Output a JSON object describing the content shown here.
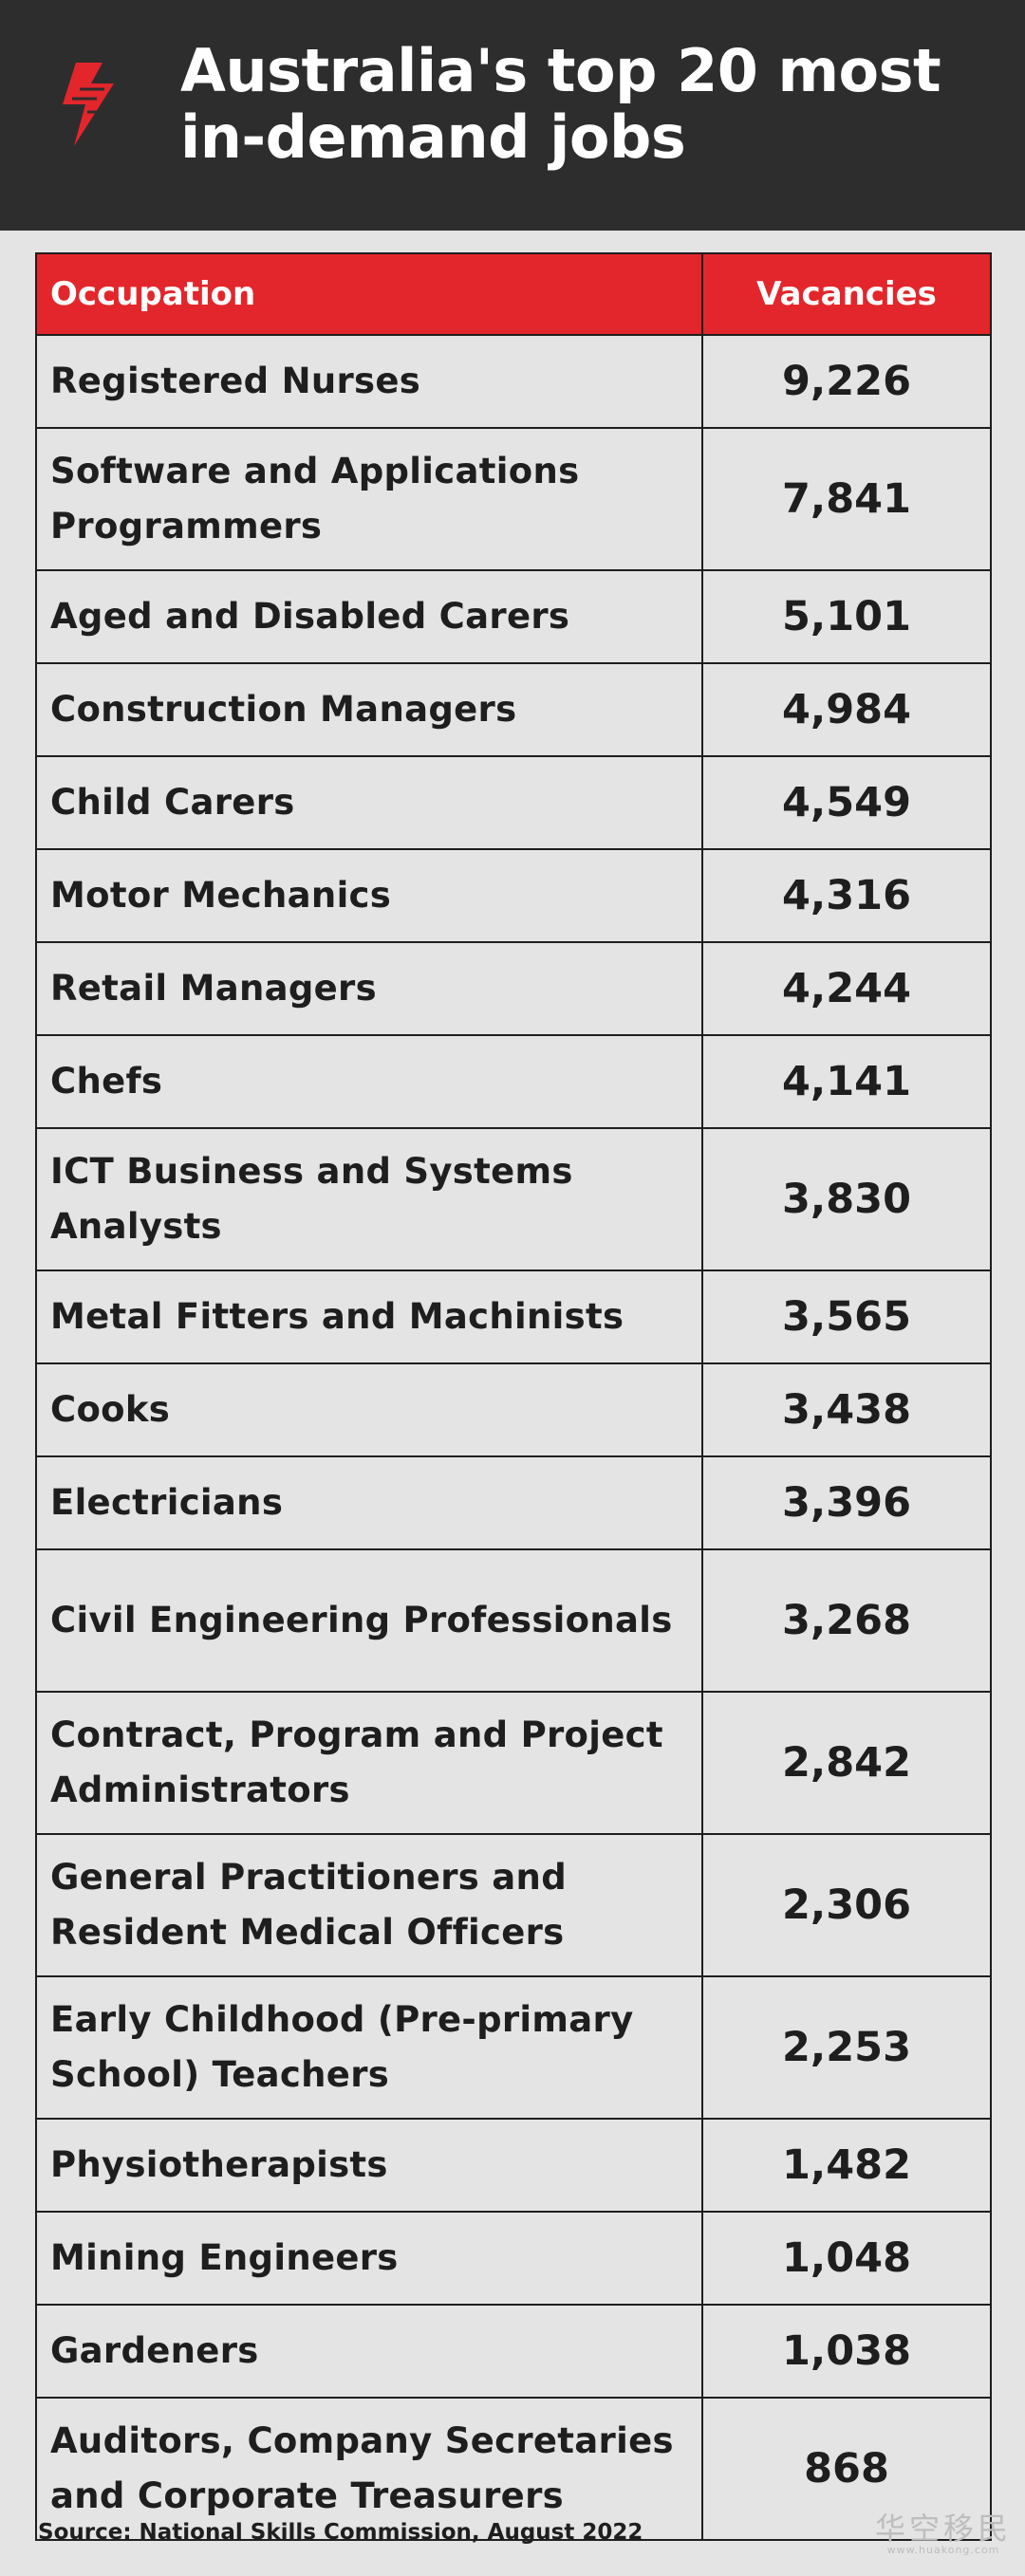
{
  "header": {
    "title": "Australia's top 20 most in-demand jobs",
    "logo_icon": "sbs-logo-icon",
    "background_color": "#2d2d2d"
  },
  "colors": {
    "accent_red": "#e2262b",
    "page_background": "#e4e4e4",
    "text": "#1e1e1e"
  },
  "chart_data": {
    "type": "table",
    "columns": [
      "Occupation",
      "Vacancies"
    ],
    "rows": [
      {
        "occupation": "Registered Nurses",
        "vacancies": "9,226"
      },
      {
        "occupation": "Software and Applications Programmers",
        "vacancies": "7,841"
      },
      {
        "occupation": "Aged and Disabled Carers",
        "vacancies": "5,101"
      },
      {
        "occupation": "Construction Managers",
        "vacancies": "4,984"
      },
      {
        "occupation": "Child Carers",
        "vacancies": "4,549"
      },
      {
        "occupation": "Motor Mechanics",
        "vacancies": "4,316"
      },
      {
        "occupation": "Retail Managers",
        "vacancies": "4,244"
      },
      {
        "occupation": "Chefs",
        "vacancies": "4,141"
      },
      {
        "occupation": "ICT Business and Systems Analysts",
        "vacancies": "3,830"
      },
      {
        "occupation": "Metal Fitters and Machinists",
        "vacancies": "3,565"
      },
      {
        "occupation": "Cooks",
        "vacancies": "3,438"
      },
      {
        "occupation": "Electricians",
        "vacancies": "3,396"
      },
      {
        "occupation": "Civil Engineering Professionals",
        "vacancies": "3,268"
      },
      {
        "occupation": "Contract, Program and Project Administrators",
        "vacancies": "2,842"
      },
      {
        "occupation": "General Practitioners and Resident Medical Officers",
        "vacancies": "2,306"
      },
      {
        "occupation": "Early Childhood (Pre-primary School) Teachers",
        "vacancies": "2,253"
      },
      {
        "occupation": "Physiotherapists",
        "vacancies": "1,482"
      },
      {
        "occupation": "Mining Engineers",
        "vacancies": "1,048"
      },
      {
        "occupation": "Gardeners",
        "vacancies": "1,038"
      },
      {
        "occupation": "Auditors, Company Secretaries and Corporate Treasurers",
        "vacancies": "868"
      }
    ]
  },
  "footer": {
    "source": "Source: National Skills Commission, August 2022"
  },
  "watermark": {
    "text": "华空移民",
    "subtext": "www.huakong.com"
  }
}
